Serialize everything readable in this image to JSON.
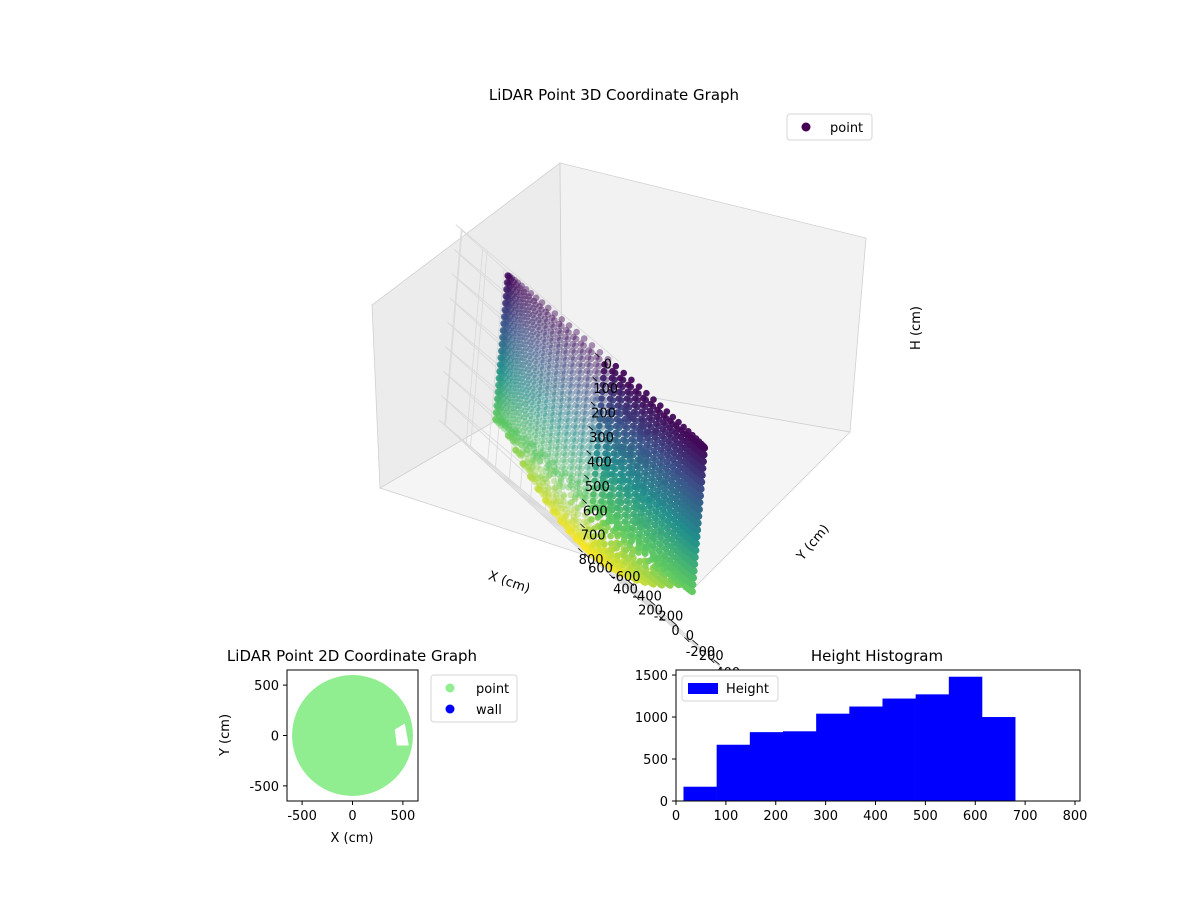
{
  "figure": {
    "chart3d_title": "LiDAR Point 3D Coordinate Graph",
    "chart2d_title": "LiDAR Point 2D Coordinate Graph",
    "hist_title": "Height Histogram"
  },
  "chart_data": [
    {
      "type": "scatter",
      "projection": "3d",
      "title": "LiDAR Point 3D Coordinate Graph",
      "xlabel": "X (cm)",
      "ylabel": "Y (cm)",
      "zlabel": "H (cm)",
      "xlim": [
        -650,
        650
      ],
      "ylim": [
        -650,
        650
      ],
      "zlim": [
        800,
        0
      ],
      "z_inverted": true,
      "xticks": [
        -600,
        -400,
        -200,
        0,
        200,
        400,
        600
      ],
      "yticks": [
        -600,
        -400,
        -200,
        0,
        200,
        400,
        600
      ],
      "zticks": [
        0,
        100,
        200,
        300,
        400,
        500,
        600,
        700,
        800
      ],
      "colormap": "viridis",
      "legend": {
        "location": "top-right",
        "entries": [
          {
            "name": "point",
            "color": "#440154"
          }
        ]
      },
      "series": [
        {
          "name": "point",
          "description_shape": "bowl-shaped point cloud: ring of wall points radius ~600 cm, height 0-600 cm, floor sagging to ~800 cm at center, with an obstacle cluster near x 0..600, y -200..200",
          "wall_radius": 600,
          "floor_depth": 800
        }
      ],
      "grid": true
    },
    {
      "type": "scatter",
      "title": "LiDAR Point 2D Coordinate Graph",
      "xlabel": "X (cm)",
      "ylabel": "Y (cm)",
      "xlim": [
        -650,
        650
      ],
      "ylim": [
        -650,
        650
      ],
      "xticks": [
        -500,
        0,
        500
      ],
      "yticks": [
        -500,
        0,
        500
      ],
      "legend": {
        "location": "outside-right",
        "entries": [
          {
            "name": "point",
            "color": "#90ee90"
          },
          {
            "name": "wall",
            "color": "#0000ff"
          }
        ]
      },
      "series": [
        {
          "name": "point",
          "color": "#90ee90",
          "shape": "filled disc radius ~600 cm"
        },
        {
          "name": "wall",
          "color": "#0000ff"
        }
      ]
    },
    {
      "type": "bar",
      "subtype": "histogram",
      "title": "Height Histogram",
      "xlim": [
        0,
        810
      ],
      "ylim": [
        0,
        1560
      ],
      "xticks": [
        0,
        100,
        200,
        300,
        400,
        500,
        600,
        700,
        800
      ],
      "yticks": [
        0,
        500,
        1000,
        1500
      ],
      "bin_edges": [
        15,
        81.5,
        148,
        214.5,
        281,
        347.5,
        414,
        480.5,
        547,
        613.5,
        680
      ],
      "values": [
        170,
        670,
        820,
        830,
        1040,
        1125,
        1220,
        1270,
        1480,
        1000
      ],
      "color": "#0000ff",
      "legend": {
        "location": "top-left",
        "entries": [
          {
            "name": "Height",
            "color": "#0000ff"
          }
        ]
      }
    }
  ]
}
